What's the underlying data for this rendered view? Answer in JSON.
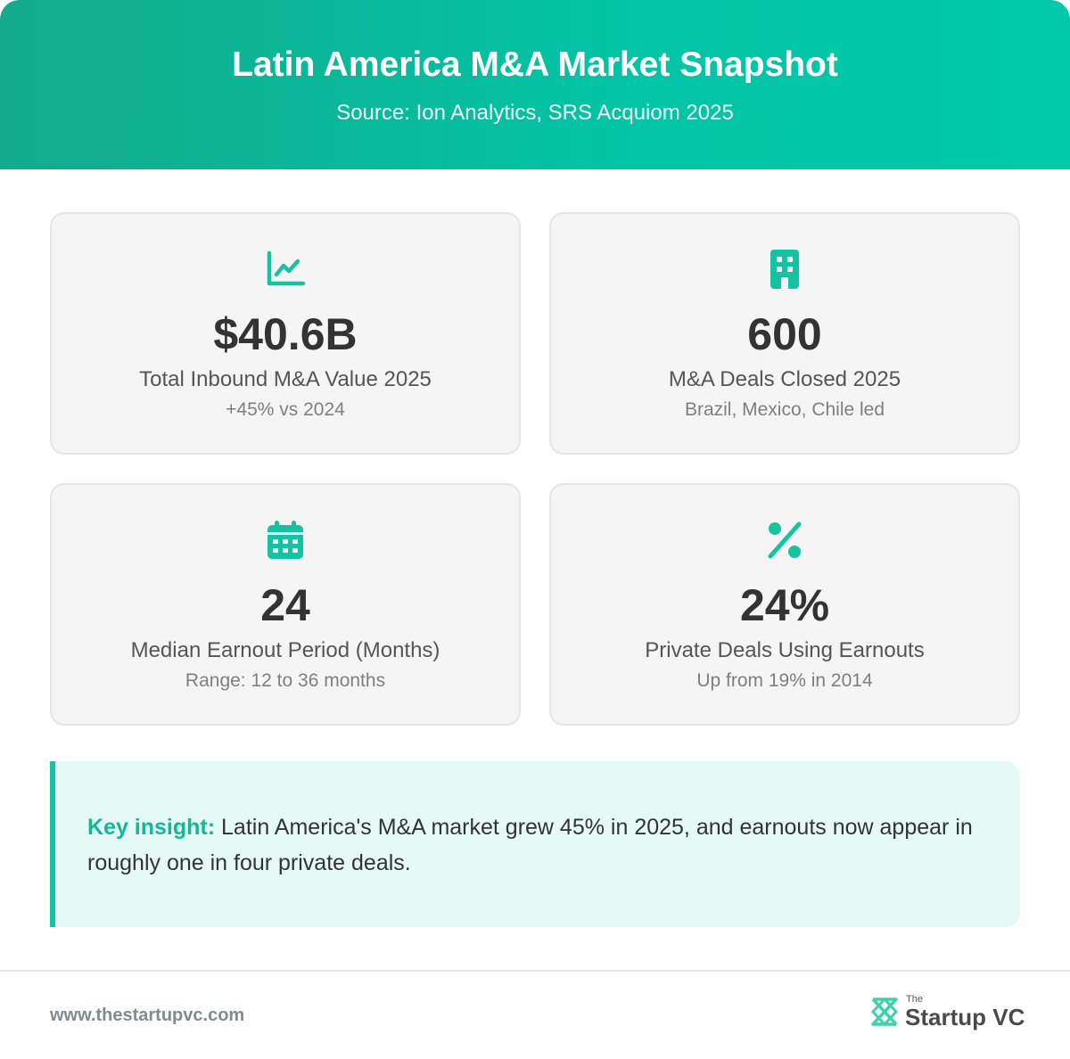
{
  "header": {
    "title": "Latin America M&A Market Snapshot",
    "subtitle": "Source: Ion Analytics, SRS Acquiom 2025"
  },
  "accent_color": "#14c3a2",
  "cards": [
    {
      "icon": "line-chart-icon",
      "value": "$40.6B",
      "label": "Total Inbound M&A Value 2025",
      "note": "+45% vs 2024"
    },
    {
      "icon": "building-icon",
      "value": "600",
      "label": "M&A Deals Closed 2025",
      "note": "Brazil, Mexico, Chile led"
    },
    {
      "icon": "calendar-icon",
      "value": "24",
      "label": "Median Earnout Period (Months)",
      "note": "Range: 12 to 36 months"
    },
    {
      "icon": "percent-icon",
      "value": "24%",
      "label": "Private Deals Using Earnouts",
      "note": "Up from 19% in 2014"
    }
  ],
  "insight": {
    "key_label": "Key insight:",
    "text": " Latin America's M&A market grew 45% in 2025, and earnouts now appear in roughly one in four private deals."
  },
  "footer": {
    "url": "www.thestartupvc.com",
    "logo_small": "The",
    "logo_text": "Startup VC"
  }
}
